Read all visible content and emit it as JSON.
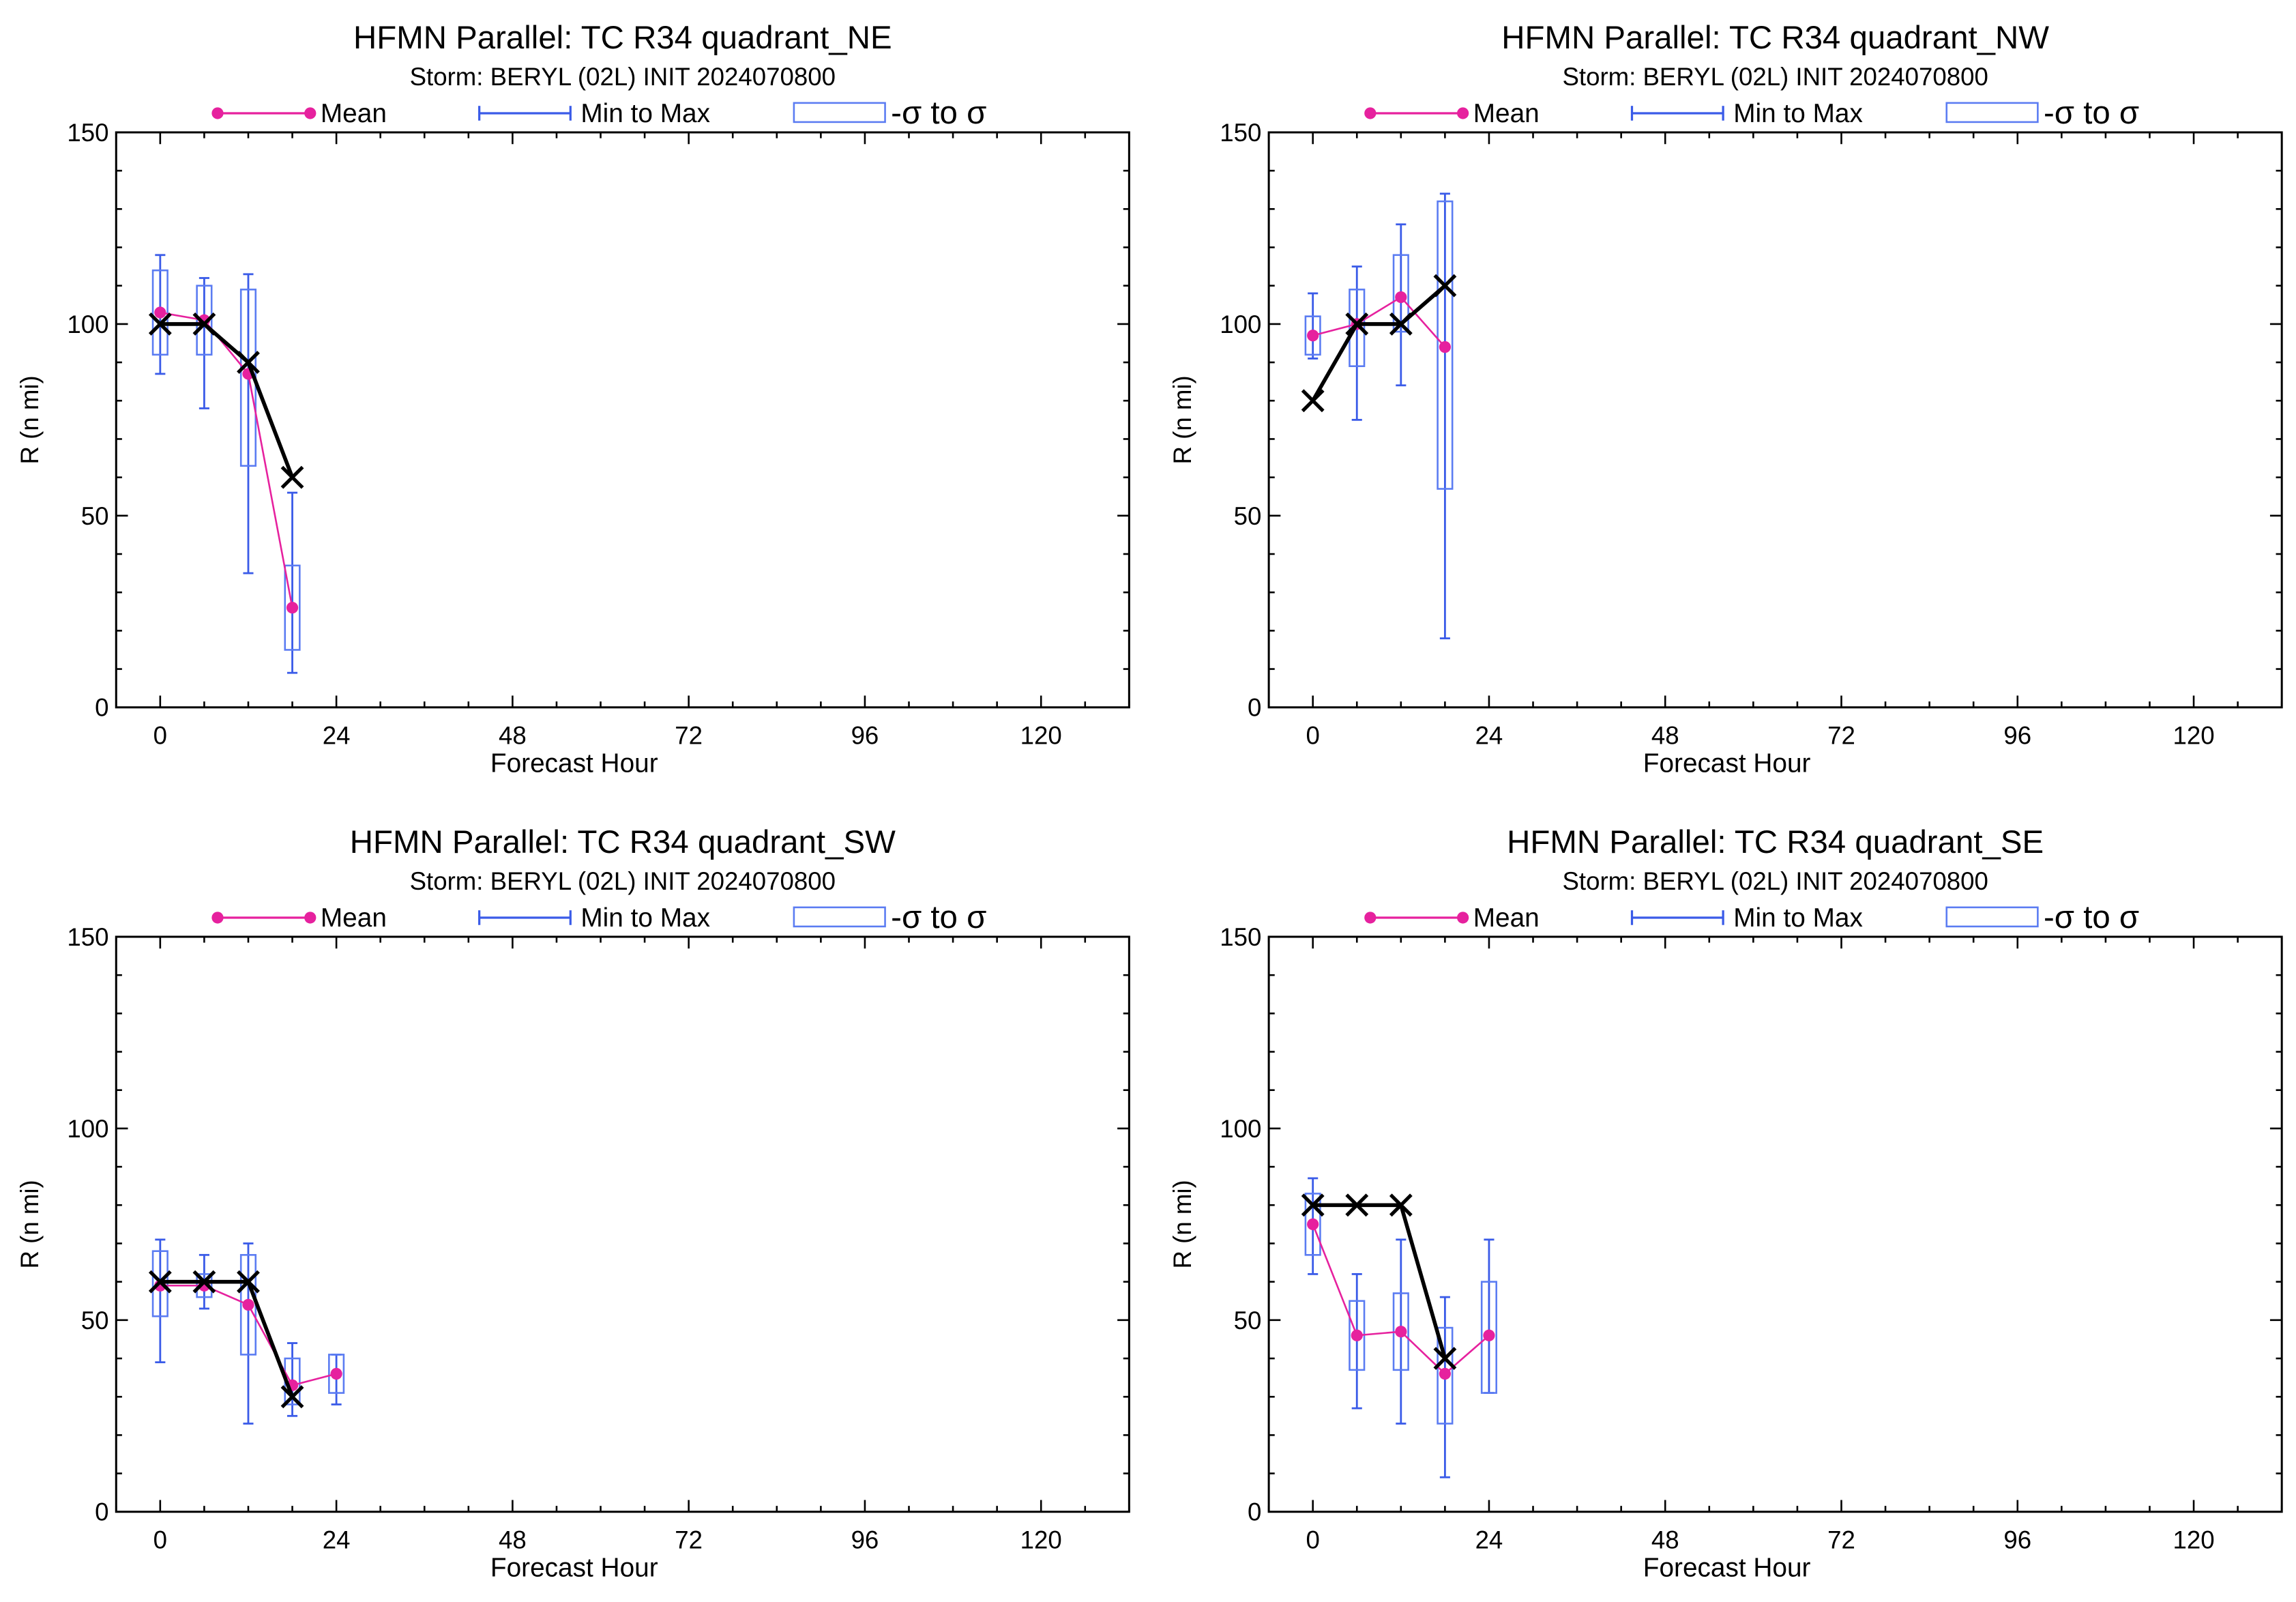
{
  "colors": {
    "mean": "#e6219e",
    "range": "#3a5be8",
    "sigma_box": "#5b7cf2",
    "official": "#000000",
    "axes": "#000000"
  },
  "legend": {
    "mean_label": "Mean",
    "range_label": "Min to Max",
    "sigma_label": "-σ to σ"
  },
  "chart_data": [
    {
      "type": "box",
      "title": "HFMN Parallel: TC  R34 quadrant_NE",
      "subtitle": "Storm: BERYL (02L) INIT 2024070800",
      "xlabel": "Forecast Hour",
      "ylabel": "R (n mi)",
      "xlim": [
        -6,
        132
      ],
      "ylim": [
        0,
        150
      ],
      "xticks": [
        0,
        24,
        48,
        72,
        96,
        120
      ],
      "yticks": [
        0,
        50,
        100,
        150
      ],
      "grid": false,
      "legend_position": "top",
      "official": [
        [
          0,
          100
        ],
        [
          6,
          100
        ],
        [
          12,
          90
        ],
        [
          18,
          60
        ]
      ],
      "stats": [
        {
          "hour": 0,
          "mean": 103,
          "sigma_low": 92,
          "sigma_high": 114,
          "min": 87,
          "max": 118
        },
        {
          "hour": 6,
          "mean": 101,
          "sigma_low": 92,
          "sigma_high": 110,
          "min": 78,
          "max": 112
        },
        {
          "hour": 12,
          "mean": 87,
          "sigma_low": 63,
          "sigma_high": 109,
          "min": 35,
          "max": 113
        },
        {
          "hour": 18,
          "mean": 26,
          "sigma_low": 15,
          "sigma_high": 37,
          "min": 9,
          "max": 56
        }
      ]
    },
    {
      "type": "box",
      "title": "HFMN Parallel: TC  R34 quadrant_NW",
      "subtitle": "Storm: BERYL (02L) INIT 2024070800",
      "xlabel": "Forecast Hour",
      "ylabel": "R (n mi)",
      "xlim": [
        -6,
        132
      ],
      "ylim": [
        0,
        150
      ],
      "xticks": [
        0,
        24,
        48,
        72,
        96,
        120
      ],
      "yticks": [
        0,
        50,
        100,
        150
      ],
      "grid": false,
      "legend_position": "top",
      "official": [
        [
          0,
          80
        ],
        [
          6,
          100
        ],
        [
          12,
          100
        ],
        [
          18,
          110
        ]
      ],
      "stats": [
        {
          "hour": 0,
          "mean": 97,
          "sigma_low": 92,
          "sigma_high": 102,
          "min": 91,
          "max": 108
        },
        {
          "hour": 6,
          "mean": 100,
          "sigma_low": 89,
          "sigma_high": 109,
          "min": 75,
          "max": 115
        },
        {
          "hour": 12,
          "mean": 107,
          "sigma_low": 98,
          "sigma_high": 118,
          "min": 84,
          "max": 126
        },
        {
          "hour": 18,
          "mean": 94,
          "sigma_low": 57,
          "sigma_high": 132,
          "min": 18,
          "max": 134
        }
      ]
    },
    {
      "type": "box",
      "title": "HFMN Parallel: TC  R34 quadrant_SW",
      "subtitle": "Storm: BERYL (02L) INIT 2024070800",
      "xlabel": "Forecast Hour",
      "ylabel": "R (n mi)",
      "xlim": [
        -6,
        132
      ],
      "ylim": [
        0,
        150
      ],
      "xticks": [
        0,
        24,
        48,
        72,
        96,
        120
      ],
      "yticks": [
        0,
        50,
        100,
        150
      ],
      "grid": false,
      "legend_position": "top",
      "official": [
        [
          0,
          60
        ],
        [
          6,
          60
        ],
        [
          12,
          60
        ],
        [
          18,
          30
        ]
      ],
      "stats": [
        {
          "hour": 0,
          "mean": 59,
          "sigma_low": 51,
          "sigma_high": 68,
          "min": 39,
          "max": 71
        },
        {
          "hour": 6,
          "mean": 59,
          "sigma_low": 56,
          "sigma_high": 62,
          "min": 53,
          "max": 67
        },
        {
          "hour": 12,
          "mean": 54,
          "sigma_low": 41,
          "sigma_high": 67,
          "min": 23,
          "max": 70
        },
        {
          "hour": 18,
          "mean": 33,
          "sigma_low": 28,
          "sigma_high": 40,
          "min": 25,
          "max": 44
        },
        {
          "hour": 24,
          "mean": 36,
          "sigma_low": 31,
          "sigma_high": 41,
          "min": 28,
          "max": 41
        }
      ]
    },
    {
      "type": "box",
      "title": "HFMN Parallel: TC  R34 quadrant_SE",
      "subtitle": "Storm: BERYL (02L) INIT 2024070800",
      "xlabel": "Forecast Hour",
      "ylabel": "R (n mi)",
      "xlim": [
        -6,
        132
      ],
      "ylim": [
        0,
        150
      ],
      "xticks": [
        0,
        24,
        48,
        72,
        96,
        120
      ],
      "yticks": [
        0,
        50,
        100,
        150
      ],
      "grid": false,
      "legend_position": "top",
      "official": [
        [
          0,
          80
        ],
        [
          6,
          80
        ],
        [
          12,
          80
        ],
        [
          18,
          40
        ]
      ],
      "stats": [
        {
          "hour": 0,
          "mean": 75,
          "sigma_low": 67,
          "sigma_high": 83,
          "min": 62,
          "max": 87
        },
        {
          "hour": 6,
          "mean": 46,
          "sigma_low": 37,
          "sigma_high": 55,
          "min": 27,
          "max": 62
        },
        {
          "hour": 12,
          "mean": 47,
          "sigma_low": 37,
          "sigma_high": 57,
          "min": 23,
          "max": 71
        },
        {
          "hour": 18,
          "mean": 36,
          "sigma_low": 23,
          "sigma_high": 48,
          "min": 9,
          "max": 56
        },
        {
          "hour": 24,
          "mean": 46,
          "sigma_low": 31,
          "sigma_high": 60,
          "min": 31,
          "max": 71
        }
      ]
    }
  ]
}
